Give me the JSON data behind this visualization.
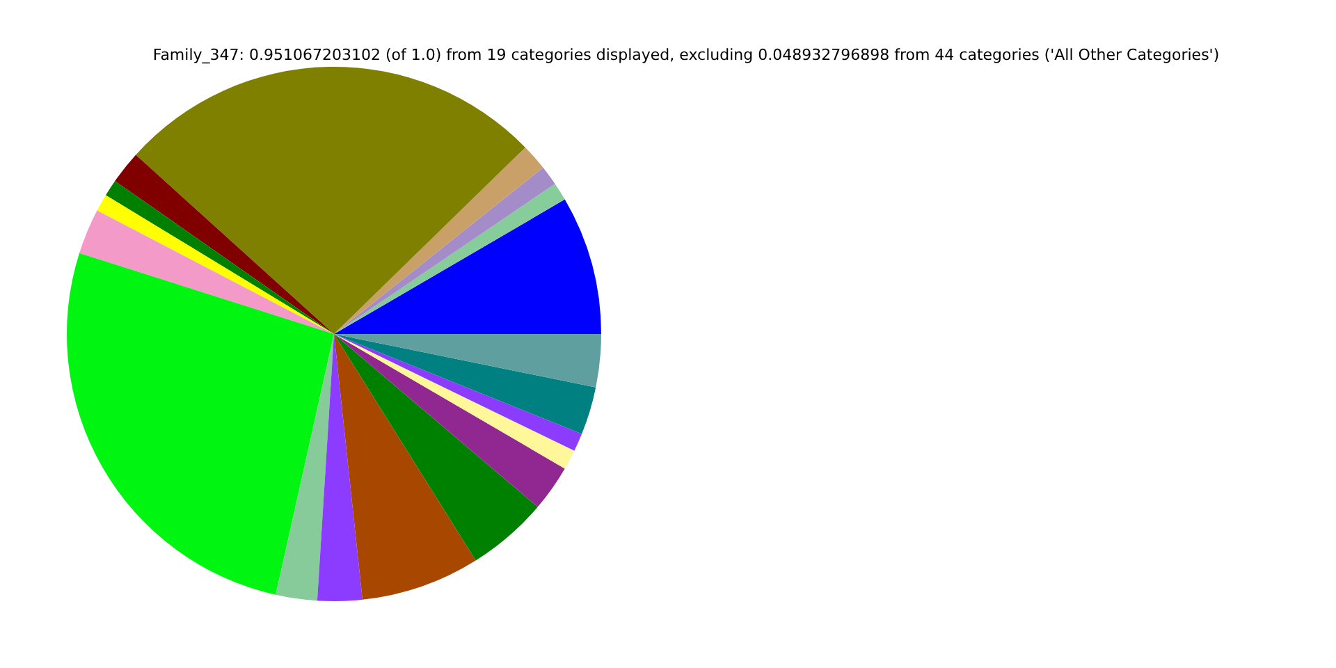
{
  "chart_data": {
    "type": "pie",
    "title": "Family_347: 0.951067203102 (of 1.0) from 19 categories displayed, excluding 0.048932796898 from 44 categories ('All Other Categories')",
    "categories": [
      null,
      null,
      null,
      null,
      null,
      null,
      null,
      null,
      null,
      null,
      null,
      null,
      null,
      null,
      null,
      null,
      null,
      null,
      null
    ],
    "values": [
      8.4,
      1.1,
      1.2,
      1.6,
      26,
      2,
      1,
      1.05,
      2.75,
      26.4,
      2.5,
      2.7,
      7.2,
      4.9,
      2.8,
      1.2,
      1.1,
      2.9,
      3.2
    ],
    "colors": [
      "#0000ff",
      "#87cc9b",
      "#a48cc8",
      "#c8a068",
      "#808000",
      "#800000",
      "#008000",
      "#ffff00",
      "#f49ac8",
      "#00f510",
      "#87cb9a",
      "#8b3cff",
      "#a84800",
      "#008000",
      "#912891",
      "#fff799",
      "#8b3cff",
      "#008080",
      "#5f9f9f"
    ]
  }
}
